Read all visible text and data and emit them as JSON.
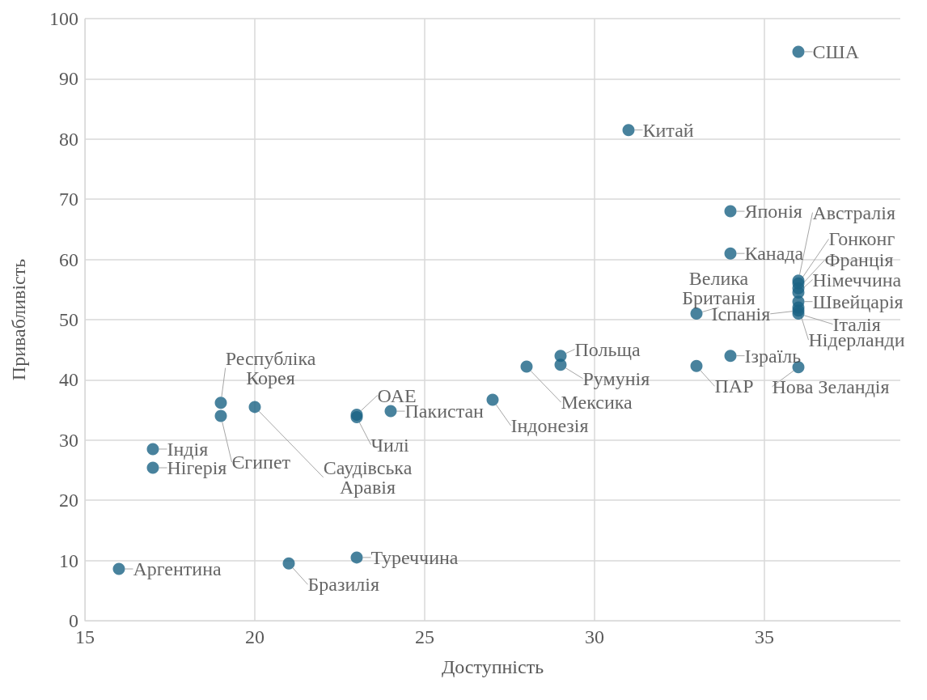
{
  "chart_data": {
    "type": "scatter",
    "xlabel": "Доступність",
    "ylabel": "Привабливість",
    "xlim": [
      15,
      39
    ],
    "xticks": [
      15,
      20,
      25,
      30,
      35
    ],
    "ylim": [
      0,
      100
    ],
    "yticks": [
      0,
      10,
      20,
      30,
      40,
      50,
      60,
      70,
      80,
      90,
      100
    ],
    "grid": true,
    "marker": "circle",
    "series": [
      {
        "color": "#1a6385",
        "x": [
          36,
          31,
          34,
          34,
          36,
          36,
          36,
          36,
          33,
          36,
          36,
          36,
          36,
          34,
          33,
          29,
          29,
          28,
          27,
          24,
          23,
          23,
          19,
          20,
          19,
          17,
          17,
          16,
          21,
          23,
          36
        ],
        "values": [
          94.5,
          81.5,
          68,
          61,
          56.5,
          56,
          55.2,
          54.5,
          51,
          53,
          51.5,
          51,
          52,
          44,
          42.3,
          44,
          42.5,
          42.2,
          36.7,
          34.8,
          34.2,
          33.8,
          36.2,
          35.5,
          34,
          28.5,
          25.4,
          8.6,
          9.5,
          10.5,
          42.1
        ],
        "value_labels": [
          "США",
          "Китай",
          "Японія",
          "Канада",
          "Австралія",
          "Гонконг",
          "Франція",
          "Німеччина",
          "Велика Британія",
          "Швейцарія",
          "Іспанія",
          "Італія",
          "Нідерланди",
          "Ізраїль",
          "ПАР",
          "Польща",
          "Румунія",
          "Мексика",
          "Індонезія",
          "Пакистан",
          "ОАЕ",
          "Чилі",
          "Республіка Корея",
          "Саудівська Аравія",
          "Єгипет",
          "Індія",
          "Нігерія",
          "Аргентина",
          "Бразилія",
          "Туреччина",
          "Нова Зеландія"
        ]
      }
    ]
  }
}
